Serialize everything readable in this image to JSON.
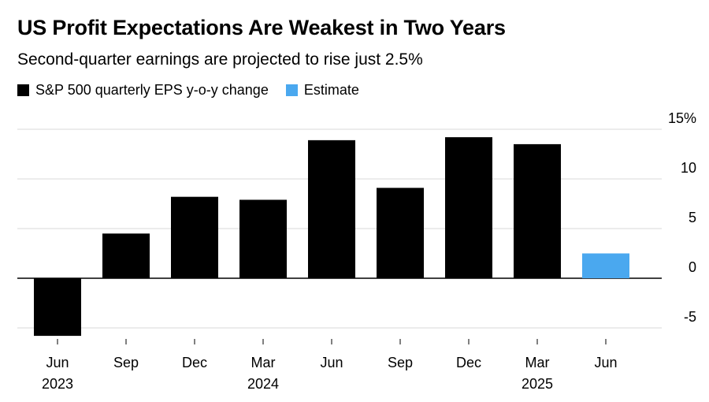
{
  "chart_data": {
    "type": "bar",
    "title": "US Profit Expectations Are Weakest in Two Years",
    "subtitle": "Second-quarter earnings are projected to rise just 2.5%",
    "legend": [
      {
        "label": "S&P 500 quarterly EPS y-o-y change",
        "color": "#000000"
      },
      {
        "label": "Estimate",
        "color": "#4aa8ef"
      }
    ],
    "categories": [
      {
        "month": "Jun",
        "year": "2023"
      },
      {
        "month": "Sep",
        "year": ""
      },
      {
        "month": "Dec",
        "year": ""
      },
      {
        "month": "Mar",
        "year": "2024"
      },
      {
        "month": "Jun",
        "year": ""
      },
      {
        "month": "Sep",
        "year": ""
      },
      {
        "month": "Dec",
        "year": ""
      },
      {
        "month": "Mar",
        "year": "2025"
      },
      {
        "month": "Jun",
        "year": ""
      }
    ],
    "values": [
      -5.8,
      4.5,
      8.2,
      7.9,
      13.9,
      9.1,
      14.2,
      13.5,
      2.5
    ],
    "estimate": [
      false,
      false,
      false,
      false,
      false,
      false,
      false,
      false,
      true
    ],
    "ylim": [
      -6,
      15
    ],
    "yticks": [
      -5,
      0,
      5,
      10,
      15
    ],
    "ytick_labels": [
      "-5",
      "0",
      "5",
      "10",
      "15%"
    ],
    "xlabel": "",
    "ylabel": "",
    "grid": true
  }
}
